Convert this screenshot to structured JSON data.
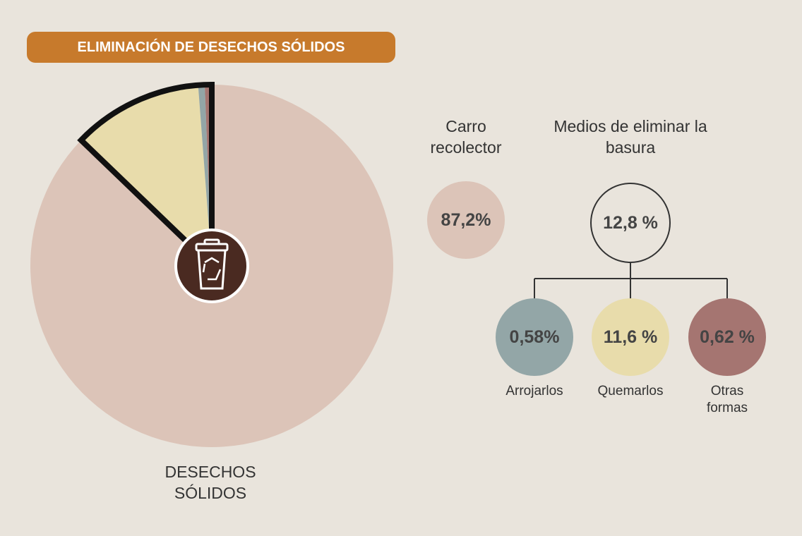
{
  "chart_data": {
    "type": "pie",
    "title": "ELIMINACIÓN DE DESECHOS SÓLIDOS",
    "center_label": "DESECHOS SÓLIDOS",
    "categories": [
      "Carro recolector",
      "Quemarlos",
      "Arrojarlos",
      "Otras formas"
    ],
    "values": [
      87.2,
      11.6,
      0.58,
      0.62
    ],
    "value_labels": [
      "87,2%",
      "11,6 %",
      "0,58%",
      "0,62 %"
    ],
    "colors": [
      "#dcc4b8",
      "#e8dcab",
      "#93a6a7",
      "#a57571"
    ],
    "group": {
      "name": "Medios de eliminar la basura",
      "value": 12.8,
      "value_label": "12,8 %"
    }
  }
}
